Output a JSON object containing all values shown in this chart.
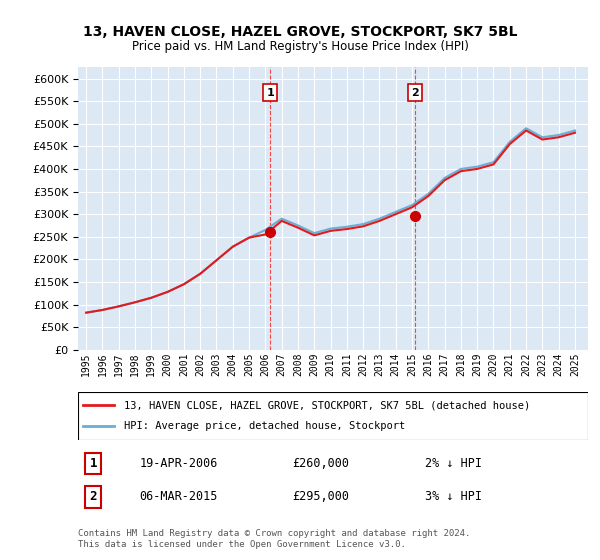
{
  "title1": "13, HAVEN CLOSE, HAZEL GROVE, STOCKPORT, SK7 5BL",
  "title2": "Price paid vs. HM Land Registry's House Price Index (HPI)",
  "xlabel": "",
  "ylabel": "",
  "ylim": [
    0,
    625000
  ],
  "yticks": [
    0,
    50000,
    100000,
    150000,
    200000,
    250000,
    300000,
    350000,
    400000,
    450000,
    500000,
    550000,
    600000
  ],
  "bg_color": "#dce9f5",
  "plot_bg": "#dce9f5",
  "grid_color": "white",
  "sale1_date": 2006.3,
  "sale1_price": 260000,
  "sale1_label": "1",
  "sale2_date": 2015.17,
  "sale2_price": 295000,
  "sale2_label": "2",
  "legend_line1": "13, HAVEN CLOSE, HAZEL GROVE, STOCKPORT, SK7 5BL (detached house)",
  "legend_line2": "HPI: Average price, detached house, Stockport",
  "info1_num": "1",
  "info1_date": "19-APR-2006",
  "info1_price": "£260,000",
  "info1_hpi": "2% ↓ HPI",
  "info2_num": "2",
  "info2_date": "06-MAR-2015",
  "info2_price": "£295,000",
  "info2_hpi": "3% ↓ HPI",
  "footer": "Contains HM Land Registry data © Crown copyright and database right 2024.\nThis data is licensed under the Open Government Licence v3.0.",
  "hpi_years": [
    1995,
    1996,
    1997,
    1998,
    1999,
    2000,
    2001,
    2002,
    2003,
    2004,
    2005,
    2006,
    2007,
    2008,
    2009,
    2010,
    2011,
    2012,
    2013,
    2014,
    2015,
    2016,
    2017,
    2018,
    2019,
    2020,
    2021,
    2022,
    2023,
    2024,
    2025
  ],
  "hpi_values": [
    82000,
    88000,
    96000,
    105000,
    115000,
    128000,
    145000,
    168000,
    198000,
    228000,
    248000,
    265000,
    290000,
    275000,
    258000,
    268000,
    272000,
    278000,
    290000,
    305000,
    320000,
    345000,
    380000,
    400000,
    405000,
    415000,
    460000,
    490000,
    470000,
    475000,
    485000
  ],
  "property_years": [
    1995,
    1996,
    1997,
    1998,
    1999,
    2000,
    2001,
    2002,
    2003,
    2004,
    2005,
    2006,
    2007,
    2008,
    2009,
    2010,
    2011,
    2012,
    2013,
    2014,
    2015,
    2016,
    2017,
    2018,
    2019,
    2020,
    2021,
    2022,
    2023,
    2024,
    2025
  ],
  "property_values": [
    82000,
    88000,
    96000,
    105000,
    115000,
    128000,
    145000,
    168000,
    198000,
    228000,
    248000,
    255000,
    285000,
    270000,
    253000,
    263000,
    267000,
    273000,
    285000,
    300000,
    315000,
    340000,
    375000,
    395000,
    400000,
    410000,
    455000,
    485000,
    465000,
    470000,
    480000
  ]
}
